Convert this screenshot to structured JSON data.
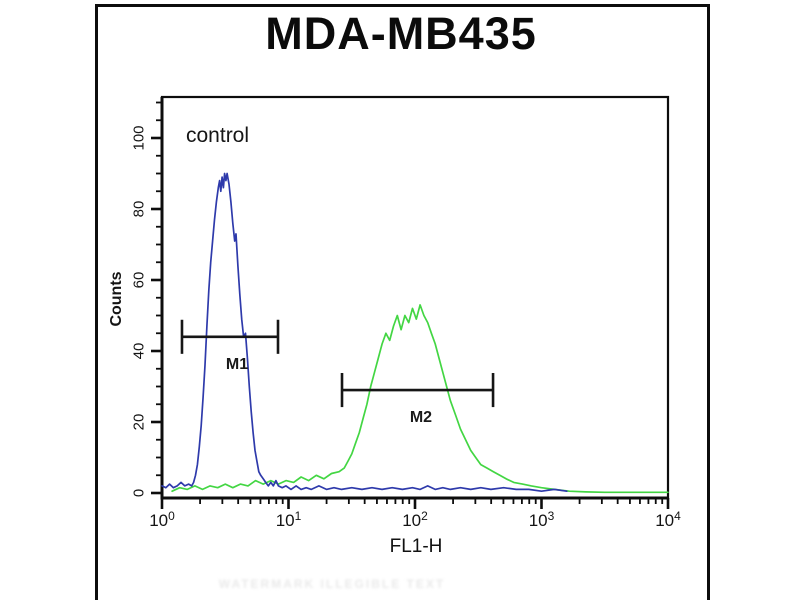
{
  "chart_data": {
    "type": "line",
    "title": "MDA-MB435",
    "inner_label": "control",
    "xlabel": "FL1-H",
    "ylabel": "Counts",
    "x_scale": "log10",
    "x_range_log": [
      0,
      4
    ],
    "x_tick_base": "10",
    "x_tick_exponents": [
      0,
      1,
      2,
      3,
      4
    ],
    "y_range": [
      0,
      110
    ],
    "y_major_ticks": [
      0,
      20,
      40,
      60,
      80,
      100
    ],
    "y_minor_step": 5,
    "grid": false,
    "legend_position": "none",
    "colors": {
      "control_series": "#2e3aab",
      "stained_series": "#43d643",
      "axis": "#0d0d0d"
    },
    "series": [
      {
        "name": "green-stained",
        "color": "#43d643",
        "points": [
          [
            0.08,
            0.5
          ],
          [
            0.14,
            1.5
          ],
          [
            0.2,
            1
          ],
          [
            0.26,
            2
          ],
          [
            0.32,
            1
          ],
          [
            0.38,
            2
          ],
          [
            0.44,
            1.5
          ],
          [
            0.5,
            2.5
          ],
          [
            0.56,
            1.5
          ],
          [
            0.62,
            2.5
          ],
          [
            0.68,
            2
          ],
          [
            0.74,
            3.5
          ],
          [
            0.8,
            2.5
          ],
          [
            0.86,
            3.5
          ],
          [
            0.92,
            2.5
          ],
          [
            0.98,
            3.5
          ],
          [
            1.04,
            3
          ],
          [
            1.1,
            4.5
          ],
          [
            1.16,
            3.5
          ],
          [
            1.22,
            5
          ],
          [
            1.28,
            4
          ],
          [
            1.34,
            5.5
          ],
          [
            1.4,
            6
          ],
          [
            1.44,
            7
          ],
          [
            1.47,
            9
          ],
          [
            1.5,
            11
          ],
          [
            1.53,
            14
          ],
          [
            1.56,
            17
          ],
          [
            1.59,
            21
          ],
          [
            1.62,
            25
          ],
          [
            1.65,
            30
          ],
          [
            1.68,
            34
          ],
          [
            1.71,
            38
          ],
          [
            1.74,
            42
          ],
          [
            1.77,
            45
          ],
          [
            1.8,
            43
          ],
          [
            1.83,
            47
          ],
          [
            1.86,
            50
          ],
          [
            1.89,
            46
          ],
          [
            1.92,
            50
          ],
          [
            1.95,
            48
          ],
          [
            1.98,
            52
          ],
          [
            2.01,
            49
          ],
          [
            2.04,
            53
          ],
          [
            2.07,
            50
          ],
          [
            2.1,
            48
          ],
          [
            2.13,
            45
          ],
          [
            2.16,
            42
          ],
          [
            2.19,
            38
          ],
          [
            2.22,
            34
          ],
          [
            2.25,
            30
          ],
          [
            2.28,
            26
          ],
          [
            2.32,
            22
          ],
          [
            2.36,
            18
          ],
          [
            2.4,
            15
          ],
          [
            2.44,
            12
          ],
          [
            2.48,
            10
          ],
          [
            2.52,
            8
          ],
          [
            2.57,
            7
          ],
          [
            2.62,
            6
          ],
          [
            2.67,
            5
          ],
          [
            2.72,
            4
          ],
          [
            2.78,
            3
          ],
          [
            2.85,
            2.5
          ],
          [
            2.92,
            2
          ],
          [
            3.0,
            1.5
          ],
          [
            3.1,
            1
          ],
          [
            3.22,
            0.5
          ],
          [
            3.35,
            0.3
          ],
          [
            3.5,
            0.2
          ],
          [
            4.0,
            0.2
          ]
        ]
      },
      {
        "name": "blue-control",
        "color": "#2e3aab",
        "points": [
          [
            0.0,
            2
          ],
          [
            0.03,
            1.5
          ],
          [
            0.06,
            2.5
          ],
          [
            0.09,
            1.5
          ],
          [
            0.12,
            2
          ],
          [
            0.15,
            3
          ],
          [
            0.18,
            2
          ],
          [
            0.21,
            2.5
          ],
          [
            0.235,
            2
          ],
          [
            0.25,
            3
          ],
          [
            0.265,
            5
          ],
          [
            0.28,
            8
          ],
          [
            0.295,
            13
          ],
          [
            0.31,
            19
          ],
          [
            0.325,
            27
          ],
          [
            0.34,
            36
          ],
          [
            0.355,
            47
          ],
          [
            0.37,
            57
          ],
          [
            0.385,
            65
          ],
          [
            0.4,
            71
          ],
          [
            0.415,
            77
          ],
          [
            0.43,
            82
          ],
          [
            0.445,
            86
          ],
          [
            0.455,
            88
          ],
          [
            0.465,
            85
          ],
          [
            0.475,
            89
          ],
          [
            0.485,
            86
          ],
          [
            0.495,
            90
          ],
          [
            0.505,
            88
          ],
          [
            0.515,
            90
          ],
          [
            0.53,
            87
          ],
          [
            0.545,
            82
          ],
          [
            0.56,
            76
          ],
          [
            0.575,
            71
          ],
          [
            0.585,
            73
          ],
          [
            0.6,
            64
          ],
          [
            0.615,
            56
          ],
          [
            0.63,
            49
          ],
          [
            0.645,
            44
          ],
          [
            0.66,
            45
          ],
          [
            0.675,
            38
          ],
          [
            0.69,
            30
          ],
          [
            0.705,
            23
          ],
          [
            0.72,
            17
          ],
          [
            0.735,
            12
          ],
          [
            0.75,
            9
          ],
          [
            0.765,
            6
          ],
          [
            0.78,
            5
          ],
          [
            0.8,
            4
          ],
          [
            0.82,
            3
          ],
          [
            0.84,
            2
          ],
          [
            0.86,
            3
          ],
          [
            0.88,
            2
          ],
          [
            0.9,
            3.5
          ],
          [
            0.92,
            2
          ],
          [
            0.95,
            1.5
          ],
          [
            0.98,
            2
          ],
          [
            1.02,
            1
          ],
          [
            1.06,
            2
          ],
          [
            1.1,
            1
          ],
          [
            1.14,
            1.5
          ],
          [
            1.18,
            1
          ],
          [
            1.24,
            2
          ],
          [
            1.3,
            1
          ],
          [
            1.36,
            1.5
          ],
          [
            1.42,
            1
          ],
          [
            1.5,
            1.5
          ],
          [
            1.58,
            1
          ],
          [
            1.66,
            1.5
          ],
          [
            1.74,
            1
          ],
          [
            1.82,
            1.5
          ],
          [
            1.9,
            1
          ],
          [
            1.98,
            1.5
          ],
          [
            2.04,
            1
          ],
          [
            2.1,
            2
          ],
          [
            2.16,
            1
          ],
          [
            2.22,
            1.5
          ],
          [
            2.28,
            1
          ],
          [
            2.36,
            1.5
          ],
          [
            2.44,
            1
          ],
          [
            2.52,
            1.5
          ],
          [
            2.6,
            1
          ],
          [
            2.7,
            1.5
          ],
          [
            2.8,
            1
          ],
          [
            2.9,
            1
          ],
          [
            3.0,
            0.5
          ],
          [
            3.1,
            1
          ],
          [
            3.2,
            0.5
          ]
        ]
      }
    ],
    "markers": [
      {
        "label": "M1",
        "x_log_start": 0.158,
        "x_log_end": 0.917,
        "y_counts": 44,
        "cap_half_counts": 4.8,
        "label_x_log": 0.593,
        "label_y_counts": 36
      },
      {
        "label": "M2",
        "x_log_start": 1.423,
        "x_log_end": 2.617,
        "y_counts": 29,
        "cap_half_counts": 4.8,
        "label_x_log": 2.047,
        "label_y_counts": 21
      }
    ]
  },
  "watermark": {
    "illegible_text": "WATERMARK ILLEGIBLE TEXT"
  }
}
